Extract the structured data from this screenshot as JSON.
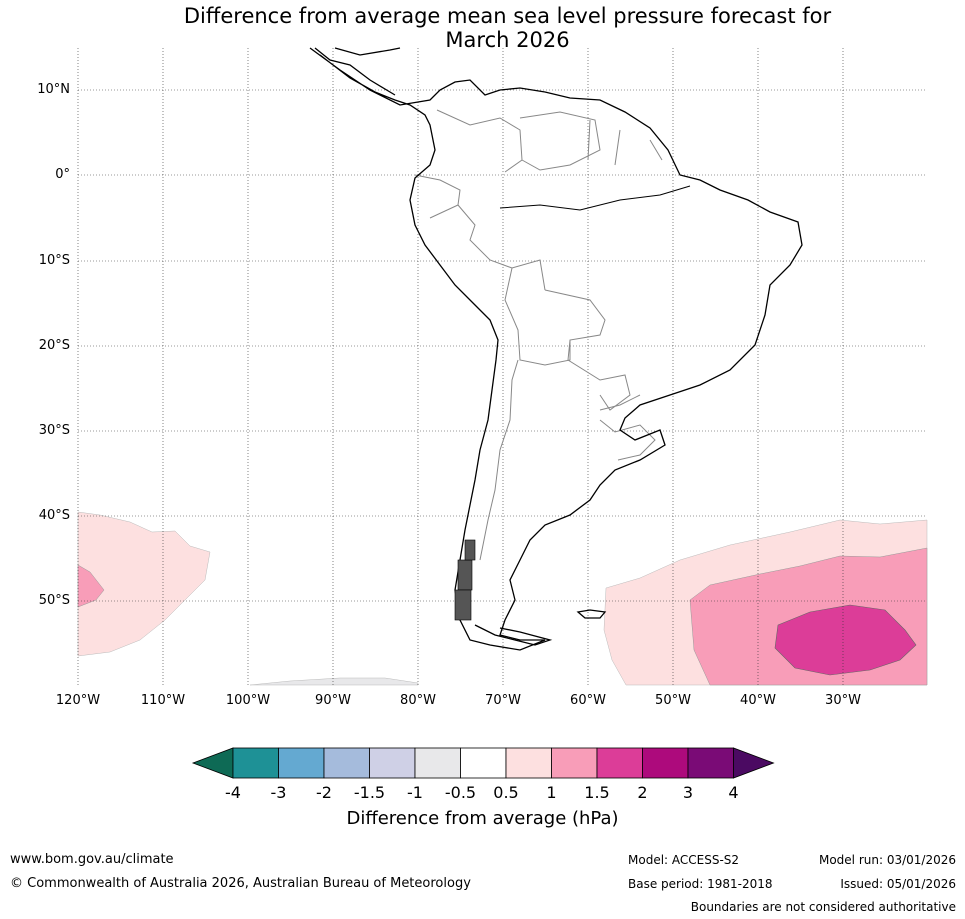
{
  "title_line1": "Difference from average mean sea level pressure forecast for",
  "title_line2": "March 2026",
  "lat_labels": [
    "10°N",
    "0°",
    "10°S",
    "20°S",
    "30°S",
    "40°S",
    "50°S"
  ],
  "lon_labels": [
    "120°W",
    "110°W",
    "100°W",
    "90°W",
    "80°W",
    "70°W",
    "60°W",
    "50°W",
    "40°W",
    "30°W"
  ],
  "colorbar": {
    "title": "Difference from average (hPa)",
    "ticks": [
      "-4",
      "-3",
      "-2",
      "-1.5",
      "-1",
      "-0.5",
      "0.5",
      "1",
      "1.5",
      "2",
      "3",
      "4"
    ],
    "colors": [
      "#1e9196",
      "#64a9d1",
      "#a5bbdc",
      "#cfd0e6",
      "#e8e8ea",
      "#ffffff",
      "#fde0e0",
      "#f89db8",
      "#dc3d98",
      "#ad0a7c",
      "#7a0b76"
    ],
    "under_color": "#0e6a55",
    "over_color": "#4b0a62"
  },
  "footer": {
    "website": "www.bom.gov.au/climate",
    "copyright": "© Commonwealth of Australia 2026, Australian Bureau of Meteorology",
    "model": "Model: ACCESS-S2",
    "base_period": "Base period: 1981-2018",
    "model_run": "Model run: 03/01/2026",
    "issued": "Issued: 05/01/2026",
    "disclaimer": "Boundaries are not considered authoritative"
  }
}
